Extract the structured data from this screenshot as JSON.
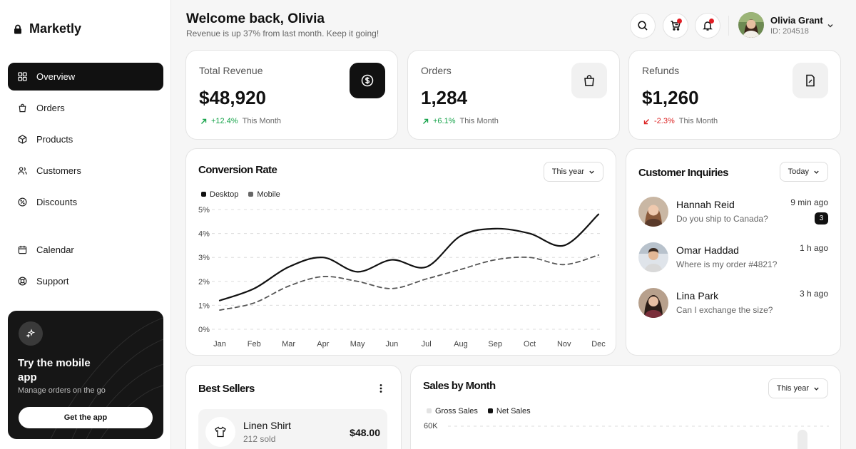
{
  "brand": {
    "name": "Marketly"
  },
  "nav": [
    {
      "label": "Overview",
      "icon": "grid-icon"
    },
    {
      "label": "Orders",
      "icon": "bag-icon"
    },
    {
      "label": "Products",
      "icon": "box-icon"
    },
    {
      "label": "Customers",
      "icon": "users-icon"
    },
    {
      "label": "Discounts",
      "icon": "discount-icon"
    },
    {
      "label": "Calendar",
      "icon": "calendar-icon"
    },
    {
      "label": "Support",
      "icon": "lifebuoy-icon"
    }
  ],
  "promo": {
    "title": "Try the mobile app",
    "subtitle": "Manage orders on the go",
    "button": "Get the app"
  },
  "header": {
    "title": "Welcome back, Olivia",
    "subtitle": "Revenue is up 37% from last month. Keep it going!",
    "user": {
      "name": "Olivia Grant",
      "id": "ID: 204518"
    }
  },
  "stats": [
    {
      "label": "Total Revenue",
      "value": "$48,920",
      "change": "+12.4%",
      "direction": "up",
      "period": "This Month",
      "icon": "dollar-icon"
    },
    {
      "label": "Orders",
      "value": "1,284",
      "change": "+6.1%",
      "direction": "up",
      "period": "This Month",
      "icon": "bag-icon"
    },
    {
      "label": "Refunds",
      "value": "$1,260",
      "change": "-2.3%",
      "direction": "down",
      "period": "This Month",
      "icon": "receipt-icon"
    }
  ],
  "conversion": {
    "title": "Conversion Rate",
    "filter": "This year"
  },
  "inquiries": {
    "title": "Customer Inquiries",
    "filter": "Today",
    "items": [
      {
        "name": "Hannah Reid",
        "message": "Do you ship to Canada?",
        "time": "9 min ago",
        "badge": "3"
      },
      {
        "name": "Omar Haddad",
        "message": "Where is my order #4821?",
        "time": "1 h ago"
      },
      {
        "name": "Lina Park",
        "message": "Can I exchange the size?",
        "time": "3 h ago"
      }
    ]
  },
  "best_sellers": {
    "title": "Best Sellers",
    "items": [
      {
        "name": "Linen Shirt",
        "sold": "212 sold",
        "price": "$48.00"
      }
    ]
  },
  "sales": {
    "title": "Sales by Month",
    "filter": "This year",
    "legend": [
      "Gross Sales",
      "Net Sales"
    ],
    "y_top_label": "60K"
  },
  "chart_data": {
    "type": "line",
    "title": "Conversion Rate",
    "categories": [
      "Jan",
      "Feb",
      "Mar",
      "Apr",
      "May",
      "Jun",
      "Jul",
      "Aug",
      "Sep",
      "Oct",
      "Nov",
      "Dec"
    ],
    "y_ticks": [
      "0%",
      "1%",
      "2%",
      "3%",
      "4%",
      "5%"
    ],
    "ylim": [
      0,
      5
    ],
    "grid": true,
    "legend_position": "top-left",
    "series": [
      {
        "name": "Desktop",
        "color": "#111111",
        "style": "solid",
        "values": [
          1.2,
          1.7,
          2.6,
          3.0,
          2.4,
          2.9,
          2.6,
          3.9,
          4.2,
          4.0,
          3.5,
          4.8
        ]
      },
      {
        "name": "Mobile",
        "color": "#555555",
        "style": "dashed",
        "values": [
          0.8,
          1.1,
          1.8,
          2.2,
          2.0,
          1.7,
          2.1,
          2.5,
          2.9,
          3.0,
          2.7,
          3.1
        ]
      }
    ]
  }
}
